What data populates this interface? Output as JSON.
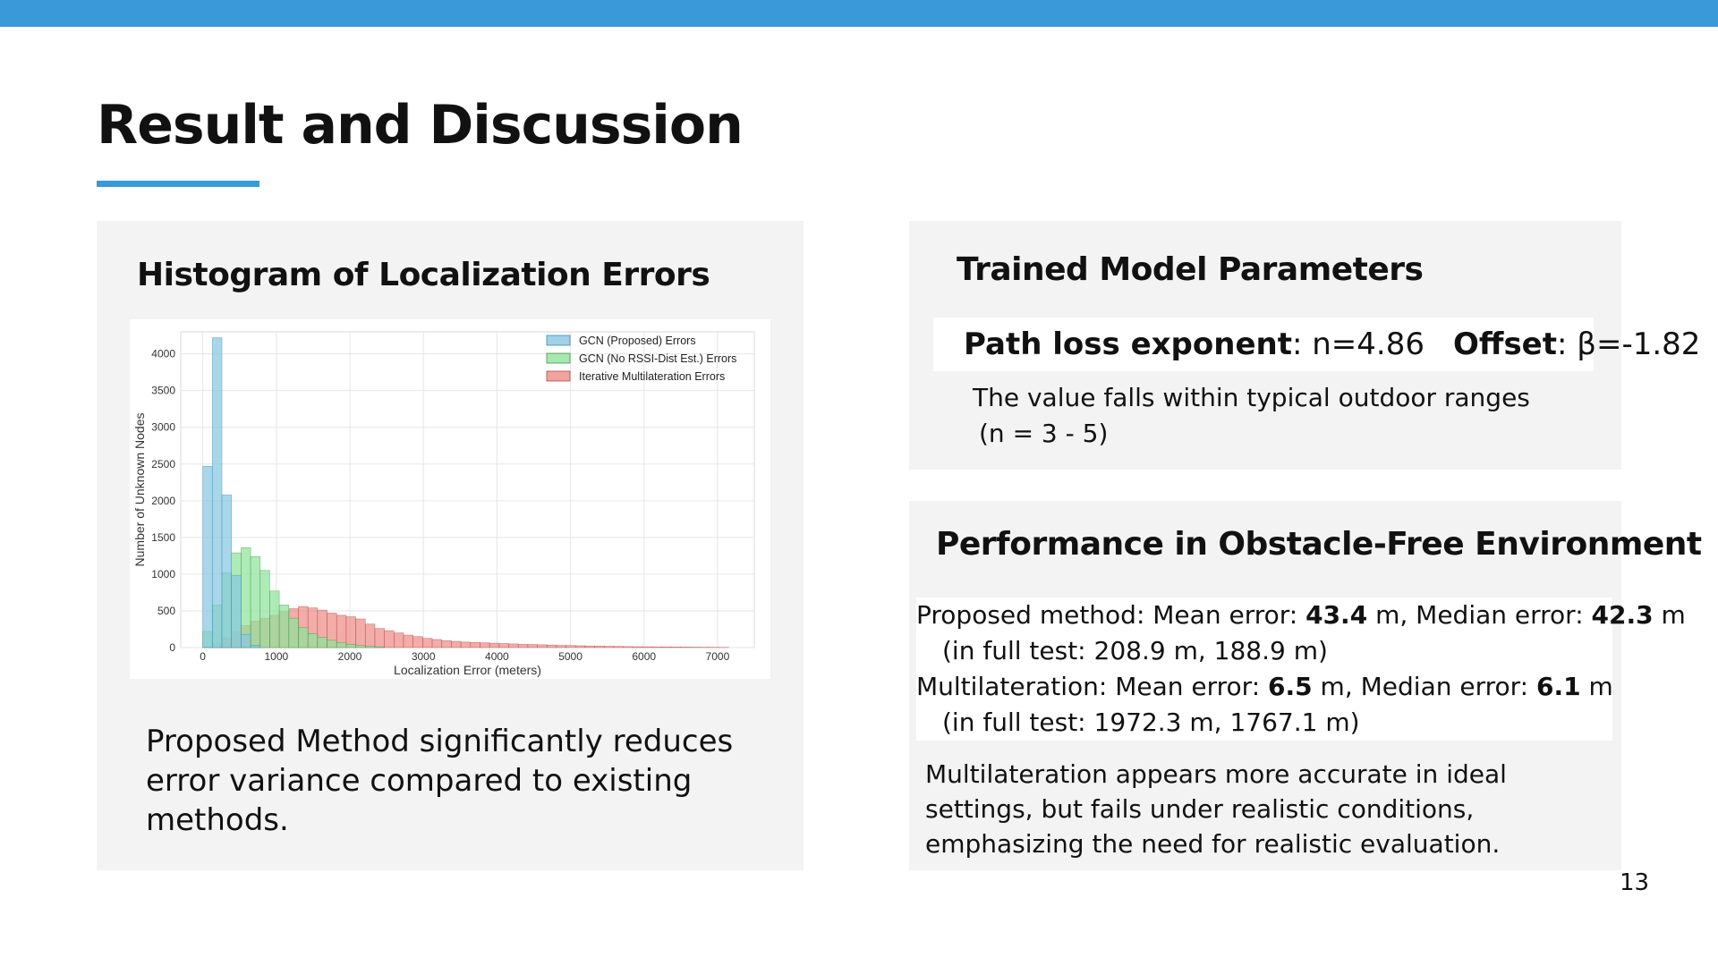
{
  "slide": {
    "title": "Result and Discussion",
    "page_number": "13",
    "accent_color": "#3a99d9"
  },
  "histogram_panel": {
    "heading": "Histogram of Localization Errors",
    "description": "Proposed Method significantly reduces error variance compared to existing methods."
  },
  "params_panel": {
    "heading": "Trained Model Parameters",
    "exponent_label": "Path loss exponent",
    "exponent_value": ": n=4.86",
    "offset_label": "Offset",
    "offset_value": ": β=-1.82",
    "note_line1": "The value falls within typical outdoor ranges",
    "note_line2": "(n = 3 - 5)"
  },
  "perf_panel": {
    "heading": "Performance in Obstacle-Free Environment",
    "proposed_prefix": "Proposed method: Mean error: ",
    "proposed_mean": "43.4",
    "proposed_mid": " m, Median error: ",
    "proposed_median": "42.3",
    "proposed_unit": " m",
    "proposed_full": "(in full test: 208.9 m, 188.9 m)",
    "multi_prefix": "Multilateration: Mean error: ",
    "multi_mean": "6.5",
    "multi_mid": " m, Median error: ",
    "multi_median": "6.1",
    "multi_unit": " m",
    "multi_full": "(in full test: 1972.3 m, 1767.1 m)",
    "note": "Multilateration appears more accurate in ideal settings, but fails under realistic conditions, emphasizing the need for realistic evaluation."
  },
  "chart_data": {
    "type": "bar",
    "xlabel": "Localization Error (meters)",
    "ylabel": "Number of Unknown Nodes",
    "xlim": [
      -300,
      7500
    ],
    "ylim": [
      0,
      4300
    ],
    "xticks": [
      0,
      1000,
      2000,
      3000,
      4000,
      5000,
      6000,
      7000
    ],
    "yticks": [
      0,
      500,
      1000,
      1500,
      2000,
      2500,
      3000,
      3500,
      4000
    ],
    "grid": true,
    "legend_position": "top-right",
    "bin_width": 130,
    "series": [
      {
        "name": "GCN (Proposed) Errors",
        "color": "#87c7e0",
        "edge": "#2d7fa6",
        "start": 0,
        "values": [
          2470,
          4220,
          2080,
          980,
          180,
          30
        ]
      },
      {
        "name": "GCN (No RSSI-Dist Est.) Errors",
        "color": "#8fe39a",
        "edge": "#2e8a3a",
        "start": 0,
        "values": [
          220,
          580,
          1020,
          1290,
          1360,
          1240,
          1050,
          770,
          580,
          400,
          270,
          190,
          140,
          100,
          70,
          45,
          30,
          20,
          10
        ]
      },
      {
        "name": "Iterative Multilateration Errors",
        "color": "#ef8c86",
        "edge": "#a03a36",
        "start": 0,
        "values": [
          10,
          60,
          130,
          220,
          300,
          360,
          400,
          440,
          490,
          530,
          560,
          540,
          510,
          470,
          440,
          420,
          390,
          320,
          260,
          230,
          200,
          170,
          150,
          125,
          110,
          95,
          85,
          75,
          70,
          65,
          60,
          55,
          50,
          45,
          42,
          38,
          34,
          30,
          28,
          25,
          22,
          20,
          18,
          16,
          14,
          12,
          11,
          10,
          9,
          8,
          7,
          6,
          5,
          4,
          3
        ]
      }
    ]
  }
}
